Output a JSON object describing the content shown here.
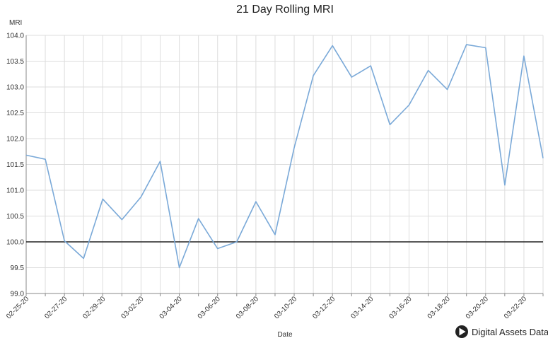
{
  "chart_data": {
    "type": "line",
    "title": "21 Day Rolling MRI",
    "xlabel": "Date",
    "ylabel": "MRI",
    "ylim": [
      99.0,
      104.0
    ],
    "y_ticks": [
      "99.0",
      "99.5",
      "100.0",
      "100.5",
      "101.0",
      "101.5",
      "102.0",
      "102.5",
      "103.0",
      "103.5",
      "104.0"
    ],
    "x_ticks": [
      "02-25-20",
      "02-27-20",
      "02-29-20",
      "03-02-20",
      "03-04-20",
      "03-06-20",
      "03-08-20",
      "03-10-20",
      "03-12-20",
      "03-14-20",
      "03-16-20",
      "03-18-20",
      "03-20-20",
      "03-22-20"
    ],
    "x": [
      "02-25-20",
      "02-26-20",
      "02-27-20",
      "02-28-20",
      "02-29-20",
      "03-01-20",
      "03-02-20",
      "03-03-20",
      "03-04-20",
      "03-05-20",
      "03-06-20",
      "03-07-20",
      "03-08-20",
      "03-09-20",
      "03-10-20",
      "03-11-20",
      "03-12-20",
      "03-13-20",
      "03-14-20",
      "03-15-20",
      "03-16-20",
      "03-17-20",
      "03-18-20",
      "03-19-20",
      "03-20-20",
      "03-21-20",
      "03-22-20",
      "03-23-20"
    ],
    "series": [
      {
        "color": "#7aa9d8",
        "values": [
          101.68,
          101.6,
          100.02,
          99.68,
          100.83,
          100.43,
          100.87,
          101.56,
          99.5,
          100.45,
          99.87,
          100.0,
          100.78,
          100.14,
          101.82,
          103.22,
          103.8,
          103.19,
          103.41,
          102.27,
          102.65,
          103.32,
          102.95,
          103.82,
          103.76,
          101.1,
          103.6,
          101.62
        ]
      }
    ],
    "reference_line": {
      "value": 100.0,
      "color": "#222222"
    },
    "grid": true,
    "legend": "none"
  },
  "branding": {
    "text": "Digital Assets Data",
    "icon": "play-triangle-logo"
  }
}
